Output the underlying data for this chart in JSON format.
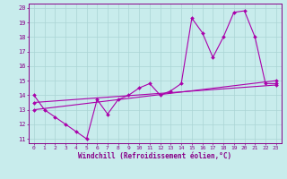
{
  "xlabel": "Windchill (Refroidissement éolien,°C)",
  "xlim": [
    -0.5,
    23.5
  ],
  "ylim": [
    10.7,
    20.3
  ],
  "xticks": [
    0,
    1,
    2,
    3,
    4,
    5,
    6,
    7,
    8,
    9,
    10,
    11,
    12,
    13,
    14,
    15,
    16,
    17,
    18,
    19,
    20,
    21,
    22,
    23
  ],
  "yticks": [
    11,
    12,
    13,
    14,
    15,
    16,
    17,
    18,
    19,
    20
  ],
  "bg_color": "#c8ecec",
  "line_color": "#aa00aa",
  "grid_color": "#aad4d4",
  "font_color": "#880088",
  "series1_x": [
    0,
    1,
    2,
    3,
    4,
    5,
    6,
    7,
    8,
    9,
    10,
    11,
    12,
    13,
    14,
    15,
    16,
    17,
    18,
    19,
    20,
    21,
    22,
    23
  ],
  "series1_y": [
    14.0,
    13.0,
    12.5,
    12.0,
    11.5,
    11.0,
    13.7,
    12.7,
    13.7,
    14.0,
    14.5,
    14.8,
    14.0,
    14.3,
    14.8,
    19.3,
    18.3,
    16.6,
    18.0,
    19.7,
    19.8,
    18.0,
    14.8,
    14.8
  ],
  "series2_x": [
    0,
    23
  ],
  "series2_y": [
    13.0,
    15.0
  ],
  "series3_x": [
    0,
    23
  ],
  "series3_y": [
    13.5,
    14.7
  ]
}
